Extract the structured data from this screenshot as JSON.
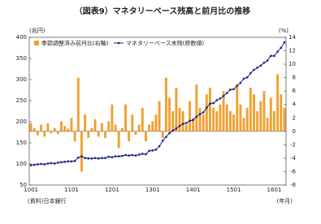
{
  "chart_data": {
    "type": "bar_line",
    "title": "（図表9）マネタリーベース残高と前月比の推移",
    "left_unit": "(兆円)",
    "right_unit": "(%)",
    "source": "(資料)日本銀行",
    "x_unit": "(年月)",
    "categories": [
      "1001",
      null,
      null,
      null,
      null,
      null,
      null,
      null,
      null,
      null,
      null,
      null,
      "1101",
      null,
      null,
      null,
      null,
      null,
      null,
      null,
      null,
      null,
      null,
      null,
      "1201",
      null,
      null,
      null,
      null,
      null,
      null,
      null,
      null,
      null,
      null,
      null,
      "1301",
      null,
      null,
      null,
      null,
      null,
      null,
      null,
      null,
      null,
      null,
      null,
      "1401",
      null,
      null,
      null,
      null,
      null,
      null,
      null,
      null,
      null,
      null,
      null,
      "1501",
      null,
      null,
      null,
      null,
      null,
      null,
      null,
      null,
      null,
      null,
      null,
      "1601",
      null,
      null,
      null
    ],
    "series": [
      {
        "name": "季節調整済み前月比(右軸)",
        "color": "#f0a030",
        "axis": "y2",
        "values": [
          1.2,
          0.5,
          -0.6,
          1.0,
          -0.8,
          1.2,
          -0.3,
          0.5,
          -0.4,
          1.5,
          0.8,
          0.4,
          2.0,
          -1.5,
          8.0,
          -6.0,
          2.5,
          -1.0,
          0.5,
          1.8,
          -0.8,
          1.2,
          -1.0,
          1.5,
          4.0,
          1.0,
          -2.5,
          0.5,
          4.0,
          -1.5,
          2.5,
          -0.5,
          1.0,
          3.5,
          -1.5,
          1.0,
          1.5,
          2.5,
          4.5,
          -1.0,
          8.0,
          5.0,
          3.0,
          6.5,
          3.5,
          3.0,
          1.0,
          4.5,
          2.0,
          7.0,
          3.5,
          2.5,
          5.5,
          6.5,
          3.5,
          3.0,
          4.0,
          6.0,
          4.0,
          3.0,
          2.5,
          7.0,
          4.0,
          2.0,
          3.5,
          6.5,
          5.5,
          3.0,
          4.5,
          6.0,
          2.0,
          5.0,
          3.0,
          8.5,
          5.5,
          3.5
        ]
      },
      {
        "name": "マネタリーベース末残(原数値)",
        "color": "#1a237e",
        "axis": "y",
        "values": [
          97,
          98,
          99,
          100,
          99,
          101,
          102,
          101,
          103,
          104,
          105,
          106,
          106,
          107,
          115,
          118,
          114,
          113,
          113,
          114,
          113,
          114,
          114,
          117,
          116,
          118,
          118,
          119,
          121,
          120,
          121,
          120,
          122,
          124,
          123,
          131,
          132,
          134,
          142,
          155,
          164,
          173,
          179,
          184,
          190,
          195,
          197,
          202,
          204,
          212,
          218,
          222,
          233,
          243,
          244,
          251,
          255,
          261,
          268,
          276,
          277,
          285,
          292,
          302,
          305,
          315,
          323,
          328,
          333,
          340,
          345,
          356,
          356,
          366,
          375,
          388
        ]
      }
    ],
    "ylim": [
      50,
      400
    ],
    "yticks": [
      50,
      100,
      150,
      200,
      250,
      300,
      350,
      400
    ],
    "y2lim": [
      -8,
      14
    ],
    "y2ticks": [
      -8,
      -6,
      -4,
      -2,
      0,
      2,
      4,
      6,
      8,
      10,
      12,
      14
    ]
  }
}
